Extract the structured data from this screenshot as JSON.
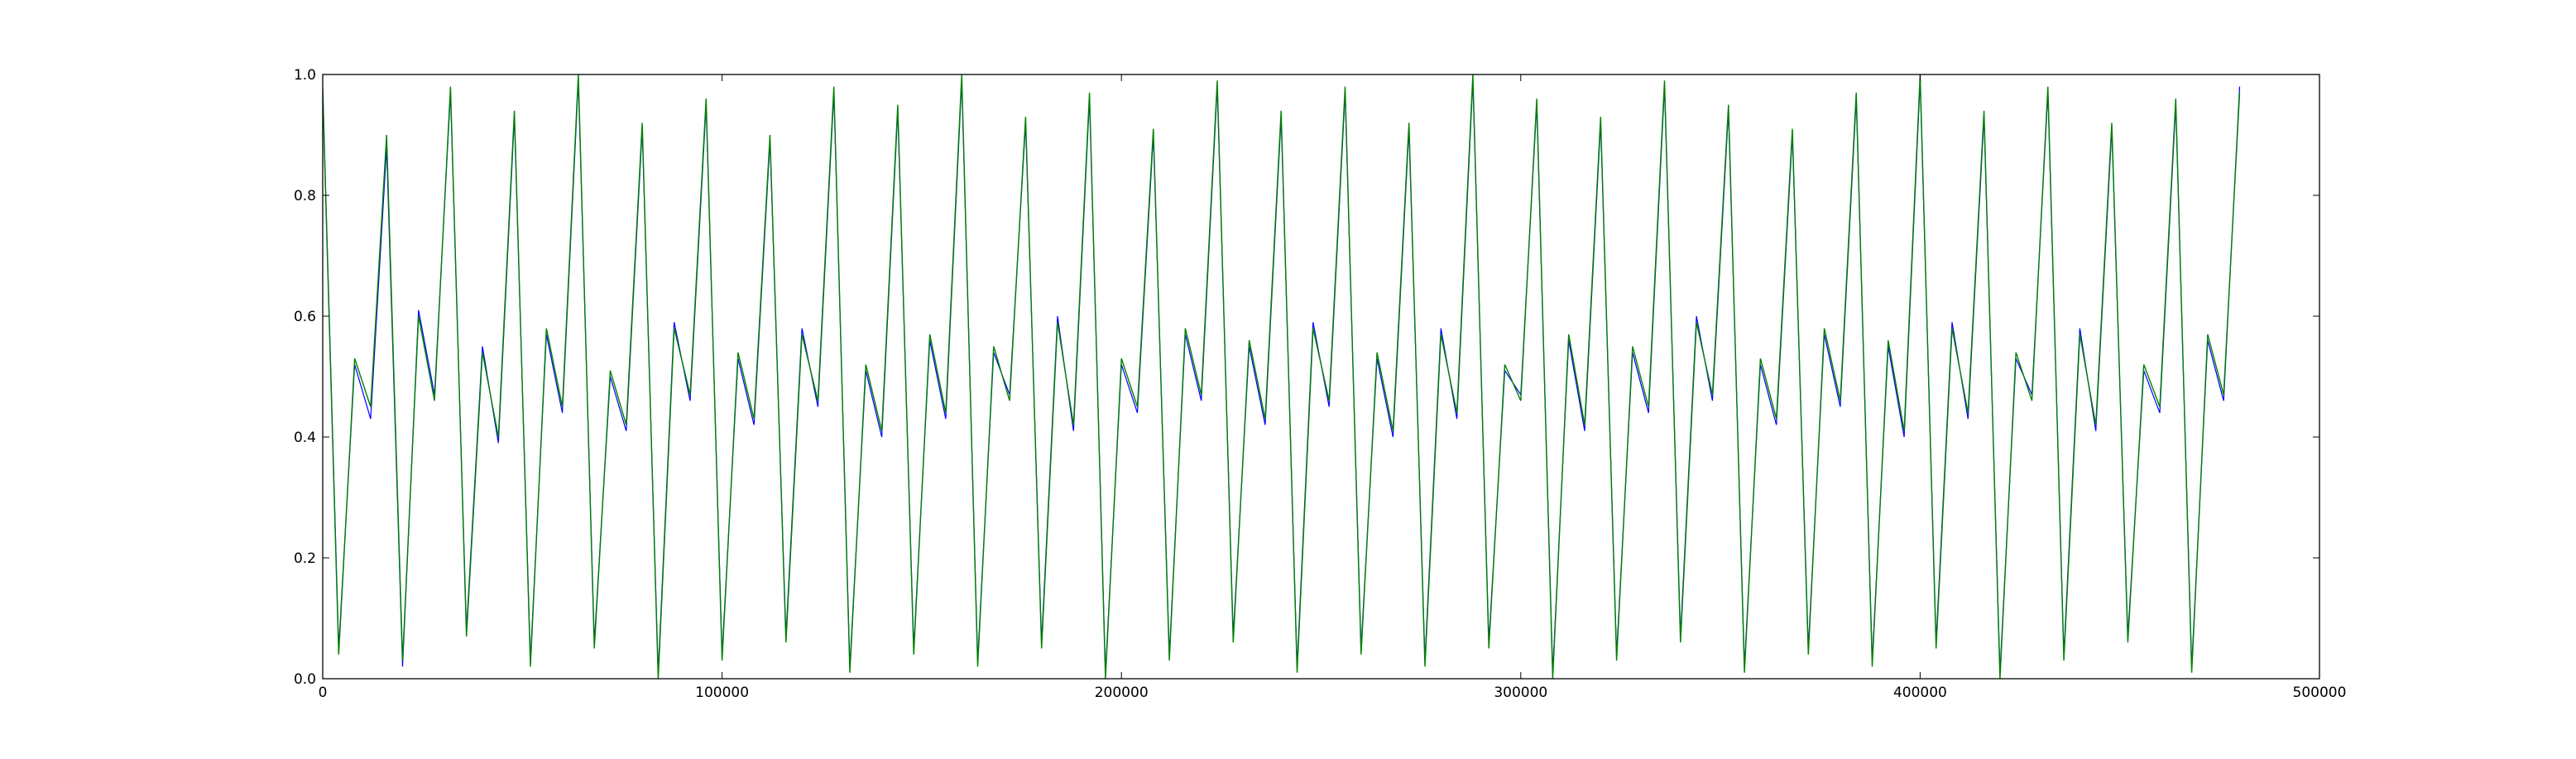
{
  "chart_data": {
    "type": "line",
    "title": "",
    "xlabel": "",
    "ylabel": "",
    "xlim": [
      0,
      500000
    ],
    "ylim": [
      0.0,
      1.0
    ],
    "x_ticks": [
      0,
      100000,
      200000,
      300000,
      400000,
      500000
    ],
    "x_tick_labels": [
      "0",
      "100000",
      "200000",
      "300000",
      "400000",
      "500000"
    ],
    "y_ticks": [
      0.0,
      0.2,
      0.4,
      0.6,
      0.8,
      1.0
    ],
    "y_tick_labels": [
      "0.0",
      "0.2",
      "0.4",
      "0.6",
      "0.8",
      "1.0"
    ],
    "grid": false,
    "legend": "none",
    "x_data_end": 480000,
    "series": [
      {
        "color": "#0000ff",
        "x_step": 4000,
        "values": [
          0.98,
          0.05,
          0.52,
          0.43,
          0.88,
          0.02,
          0.61,
          0.47,
          0.97,
          0.08,
          0.55,
          0.39,
          0.93,
          0.03,
          0.57,
          0.44,
          0.99,
          0.06,
          0.5,
          0.41,
          0.91,
          0.01,
          0.59,
          0.46,
          0.95,
          0.04,
          0.53,
          0.42,
          0.89,
          0.07,
          0.58,
          0.45,
          0.97,
          0.02,
          0.51,
          0.4,
          0.94,
          0.05,
          0.56,
          0.43,
          0.99,
          0.03,
          0.54,
          0.47,
          0.92,
          0.06,
          0.6,
          0.41,
          0.96,
          0.01,
          0.52,
          0.44,
          0.9,
          0.04,
          0.57,
          0.46,
          0.98,
          0.07,
          0.55,
          0.42,
          0.93,
          0.02,
          0.59,
          0.45,
          0.97,
          0.05,
          0.53,
          0.4,
          0.91,
          0.03,
          0.58,
          0.43,
          0.99,
          0.06,
          0.51,
          0.47,
          0.95,
          0.01,
          0.56,
          0.41,
          0.92,
          0.04,
          0.54,
          0.44,
          0.98,
          0.07,
          0.6,
          0.46,
          0.94,
          0.02,
          0.52,
          0.42,
          0.9,
          0.05,
          0.57,
          0.45,
          0.96,
          0.03,
          0.55,
          0.4,
          0.99,
          0.06,
          0.59,
          0.43,
          0.93,
          0.01,
          0.53,
          0.47,
          0.97,
          0.04,
          0.58,
          0.41,
          0.91,
          0.07,
          0.51,
          0.44,
          0.95,
          0.02,
          0.56,
          0.46,
          0.98
        ]
      },
      {
        "color": "#008000",
        "x_step": 4000,
        "values": [
          0.97,
          0.04,
          0.53,
          0.45,
          0.9,
          0.03,
          0.6,
          0.46,
          0.98,
          0.07,
          0.54,
          0.4,
          0.94,
          0.02,
          0.58,
          0.45,
          1.0,
          0.05,
          0.51,
          0.42,
          0.92,
          0.0,
          0.58,
          0.47,
          0.96,
          0.03,
          0.54,
          0.43,
          0.9,
          0.06,
          0.57,
          0.46,
          0.98,
          0.01,
          0.52,
          0.41,
          0.95,
          0.04,
          0.57,
          0.44,
          1.0,
          0.02,
          0.55,
          0.46,
          0.93,
          0.05,
          0.59,
          0.42,
          0.97,
          0.0,
          0.53,
          0.45,
          0.91,
          0.03,
          0.58,
          0.47,
          0.99,
          0.06,
          0.56,
          0.43,
          0.94,
          0.01,
          0.58,
          0.46,
          0.98,
          0.04,
          0.54,
          0.41,
          0.92,
          0.02,
          0.57,
          0.44,
          1.0,
          0.05,
          0.52,
          0.46,
          0.96,
          0.0,
          0.57,
          0.42,
          0.93,
          0.03,
          0.55,
          0.45,
          0.99,
          0.06,
          0.59,
          0.47,
          0.95,
          0.01,
          0.53,
          0.43,
          0.91,
          0.04,
          0.58,
          0.46,
          0.97,
          0.02,
          0.56,
          0.41,
          1.0,
          0.05,
          0.58,
          0.44,
          0.94,
          0.0,
          0.54,
          0.46,
          0.98,
          0.03,
          0.57,
          0.42,
          0.92,
          0.06,
          0.52,
          0.45,
          0.96,
          0.01,
          0.57,
          0.47,
          0.97
        ]
      }
    ]
  }
}
